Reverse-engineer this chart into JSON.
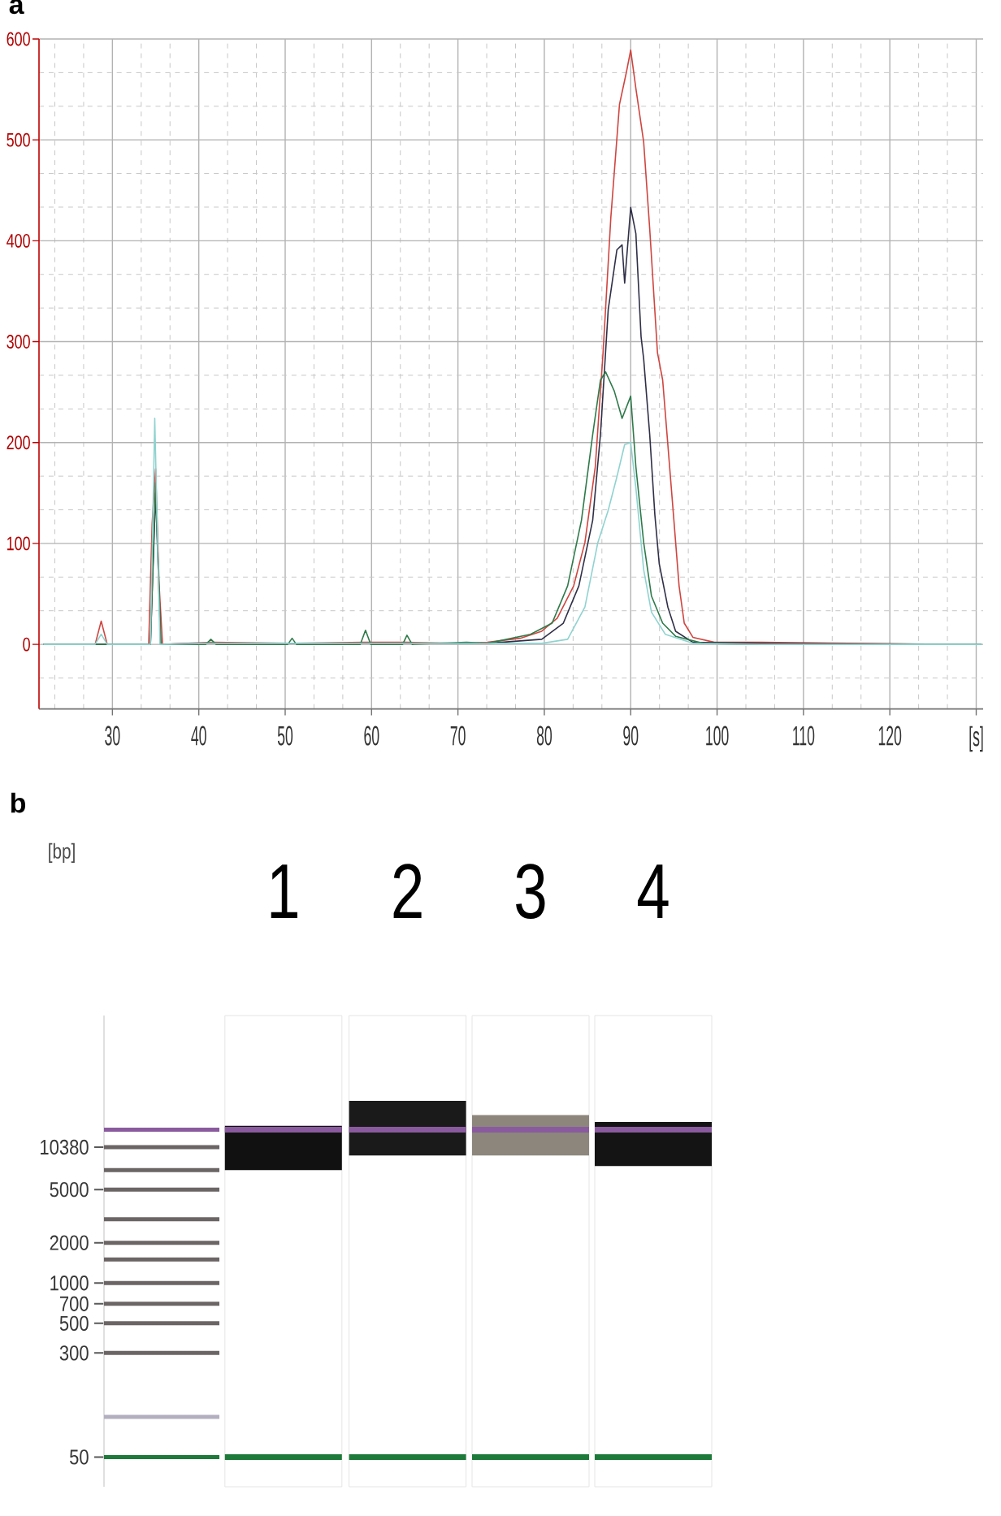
{
  "chart_data": [
    {
      "type": "line",
      "title": "a",
      "xlim": [
        21.5,
        130.8
      ],
      "ylim": [
        -64,
        600
      ],
      "xticks": [
        30,
        40,
        50,
        60,
        70,
        80,
        90,
        100,
        110,
        120,
        {
          "value": 130,
          "label": "[s]"
        }
      ],
      "yticks": [
        0,
        100,
        200,
        300,
        400,
        500,
        600
      ],
      "grid": true,
      "series": [
        {
          "color": "#d0453f",
          "x": [
            22.0,
            28.0,
            28.7,
            29.4,
            34.2,
            34.6,
            35.0,
            35.4,
            35.8,
            41.4,
            50.8,
            59.3,
            64.1,
            70.1,
            73.4,
            77.2,
            79.7,
            81.5,
            83.4,
            84.7,
            85.9,
            86.8,
            87.7,
            88.7,
            89.5,
            90.0,
            90.6,
            91.5,
            92.2,
            93.1,
            93.7,
            94.3,
            95.0,
            95.6,
            96.2,
            97.2,
            99.7,
            105.1,
            115.2,
            125.2,
            130.6
          ],
          "values": [
            0,
            0,
            23,
            0,
            0,
            120,
            174,
            60,
            0,
            2,
            1,
            2,
            2,
            1,
            2,
            6,
            13,
            26,
            58,
            101,
            176,
            289,
            423,
            535,
            567,
            589,
            551,
            498,
            412,
            289,
            262,
            198,
            123,
            58,
            21,
            7,
            2,
            2,
            1,
            0,
            0
          ]
        },
        {
          "color": "#2f2f48",
          "x": [
            22.0,
            34.4,
            35.0,
            35.6,
            41.0,
            55.0,
            70.1,
            73.4,
            79.7,
            82.2,
            84.0,
            85.6,
            86.5,
            87.4,
            88.4,
            89.0,
            89.3,
            90.0,
            90.6,
            91.2,
            91.5,
            92.2,
            92.8,
            93.3,
            94.3,
            95.2,
            97.2,
            105.1,
            130.6
          ],
          "values": [
            0,
            0,
            150,
            0,
            1,
            1,
            1,
            1,
            5,
            21,
            58,
            123,
            208,
            332,
            391,
            396,
            358,
            433,
            407,
            305,
            283,
            208,
            128,
            80,
            37,
            13,
            2,
            1,
            0
          ]
        },
        {
          "color": "#2e7a4a",
          "x": [
            22.0,
            34.4,
            35.0,
            35.6,
            40.8,
            41.4,
            42.0,
            50.3,
            50.8,
            51.3,
            58.7,
            59.3,
            59.9,
            63.6,
            64.1,
            64.7,
            71.0,
            73.4,
            78.4,
            80.9,
            82.7,
            84.3,
            85.6,
            86.5,
            87.1,
            88.1,
            89.0,
            90.0,
            90.6,
            91.5,
            92.4,
            93.7,
            95.2,
            98.4,
            105.1,
            130.6
          ],
          "values": [
            0,
            0,
            160,
            0,
            0,
            5,
            0,
            0,
            6,
            0,
            0,
            14,
            0,
            0,
            9,
            0,
            2,
            1,
            10,
            21,
            58,
            123,
            208,
            262,
            270,
            251,
            224,
            246,
            176,
            101,
            48,
            21,
            8,
            1,
            0,
            0
          ]
        },
        {
          "color": "#8fd3d0",
          "x": [
            22.0,
            28.0,
            28.7,
            29.4,
            34.4,
            34.9,
            35.5,
            41.0,
            55.0,
            75.1,
            79.7,
            82.7,
            84.7,
            86.2,
            87.4,
            88.4,
            89.3,
            90.0,
            90.6,
            91.5,
            92.4,
            94.0,
            97.2,
            105.1,
            130.6
          ],
          "values": [
            0,
            0,
            10,
            0,
            0,
            224,
            0,
            1,
            1,
            1,
            1,
            5,
            37,
            101,
            133,
            166,
            198,
            200,
            155,
            74,
            32,
            10,
            1,
            0,
            0
          ]
        }
      ]
    },
    {
      "type": "line",
      "title": "b",
      "ylabel": "[bp]",
      "categories": [
        null
      ],
      "log": "y",
      "ylim": [
        30,
        100000
      ],
      "yticks": [
        50,
        300,
        500,
        700,
        1000,
        2000,
        5000,
        10380
      ],
      "ref_lines": [
        {
          "axis": "y",
          "value": 14000,
          "color": "#8a5a9e"
        },
        {
          "axis": "y",
          "value": 10380,
          "color": "#6b6565"
        },
        {
          "axis": "y",
          "value": 7000,
          "color": "#6b6565"
        },
        {
          "axis": "y",
          "value": 5000,
          "color": "#6b6565"
        },
        {
          "axis": "y",
          "value": 3000,
          "color": "#6b6565"
        },
        {
          "axis": "y",
          "value": 2000,
          "color": "#6b6565"
        },
        {
          "axis": "y",
          "value": 1500,
          "color": "#6b6565"
        },
        {
          "axis": "y",
          "value": 1000,
          "color": "#6b6565"
        },
        {
          "axis": "y",
          "value": 700,
          "color": "#6b6565"
        },
        {
          "axis": "y",
          "value": 500,
          "color": "#6b6565"
        },
        {
          "axis": "y",
          "value": 300,
          "color": "#6b6565"
        },
        {
          "axis": "y",
          "value": 100,
          "color": "#b4afc0"
        },
        {
          "axis": "y",
          "value": 50,
          "color": "#1e7a3a"
        }
      ]
    },
    {
      "type": "bar",
      "categories": [
        "1"
      ],
      "base": [
        7000
      ],
      "values": [
        8000
      ],
      "color": "#111111",
      "log": "y",
      "ylim": [
        30,
        100000
      ],
      "tick_labels": "x",
      "ref_lines": [
        {
          "axis": "y",
          "value": 14000,
          "color": "#8a5a9e"
        },
        {
          "axis": "y",
          "value": 50,
          "color": "#1e7a3a"
        }
      ]
    },
    {
      "type": "bar",
      "categories": [
        "2"
      ],
      "base": [
        9000
      ],
      "values": [
        14000
      ],
      "color": "#1a1a1a",
      "log": "y",
      "ylim": [
        30,
        100000
      ],
      "tick_labels": "x",
      "ref_lines": [
        {
          "axis": "y",
          "value": 14000,
          "color": "#8a5a9e"
        },
        {
          "axis": "y",
          "value": 50,
          "color": "#1e7a3a"
        }
      ]
    },
    {
      "type": "bar",
      "categories": [
        "3"
      ],
      "base": [
        9000
      ],
      "values": [
        9000
      ],
      "color": "#8c867c",
      "log": "y",
      "ylim": [
        30,
        100000
      ],
      "tick_labels": "x",
      "ref_lines": [
        {
          "axis": "y",
          "value": 14000,
          "color": "#8a5a9e"
        },
        {
          "axis": "y",
          "value": 50,
          "color": "#1e7a3a"
        }
      ]
    },
    {
      "type": "bar",
      "categories": [
        "4"
      ],
      "base": [
        7500
      ],
      "values": [
        8500
      ],
      "color": "#141414",
      "log": "y",
      "ylim": [
        30,
        100000
      ],
      "tick_labels": "x",
      "ref_lines": [
        {
          "axis": "y",
          "value": 14000,
          "color": "#8a5a9e"
        },
        {
          "axis": "y",
          "value": 50,
          "color": "#1e7a3a"
        }
      ]
    }
  ]
}
